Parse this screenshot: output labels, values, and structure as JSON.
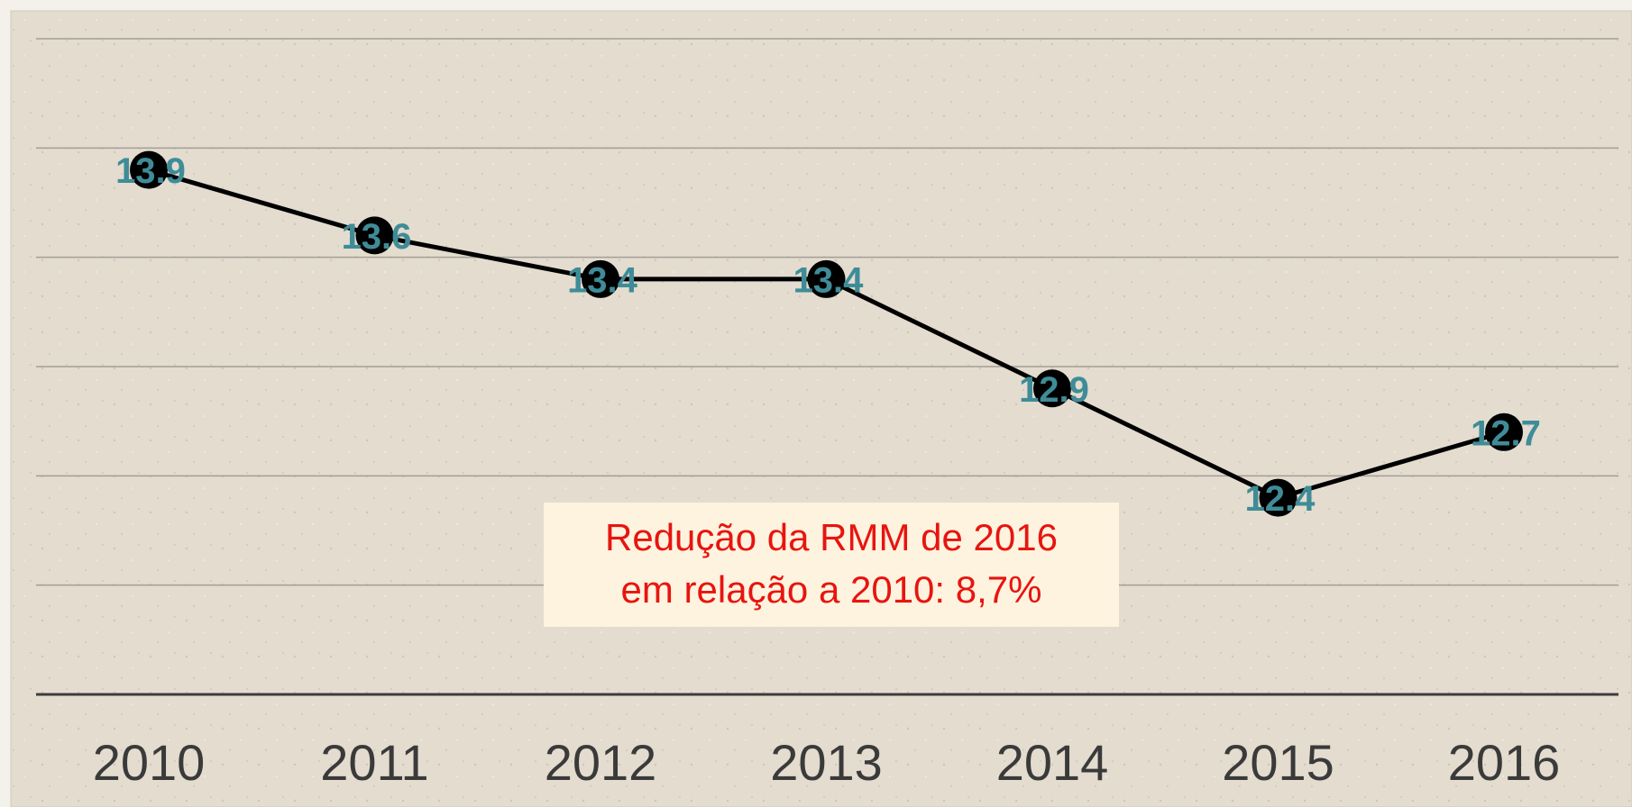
{
  "chart_data": {
    "type": "line",
    "categories": [
      "2010",
      "2011",
      "2012",
      "2013",
      "2014",
      "2015",
      "2016"
    ],
    "series": [
      {
        "color": "#000000",
        "values": [
          13.9,
          13.6,
          13.4,
          13.4,
          12.9,
          12.4,
          12.7
        ]
      }
    ],
    "ylim": [
      11.5,
      14.5
    ],
    "yticks": [
      11.5,
      12,
      12.5,
      13,
      13.5,
      14,
      14.5
    ],
    "grid": true,
    "label_color": "#3f8c98",
    "annotation": [
      "Redução da RMM de 2016",
      "em relação  a 2010: 8,7%"
    ]
  }
}
